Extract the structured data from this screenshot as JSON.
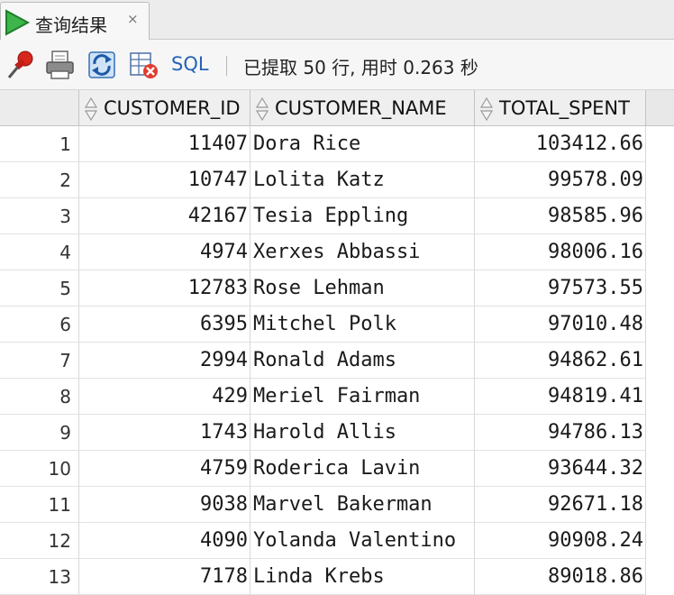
{
  "tab": {
    "label": "查询结果",
    "close_glyph": "×",
    "icon": "run-triangle-icon"
  },
  "toolbar": {
    "buttons": [
      "pin-icon",
      "print-icon",
      "refresh-icon",
      "clear-results-icon"
    ],
    "sql_label": "SQL",
    "status": "已提取 50 行, 用时 0.263 秒"
  },
  "grid": {
    "columns": [
      "CUSTOMER_ID",
      "CUSTOMER_NAME",
      "TOTAL_SPENT"
    ],
    "rows": [
      {
        "n": "1",
        "id": "11407",
        "name": "Dora Rice",
        "total": "103412.66"
      },
      {
        "n": "2",
        "id": "10747",
        "name": "Lolita Katz",
        "total": "99578.09"
      },
      {
        "n": "3",
        "id": "42167",
        "name": "Tesia Eppling",
        "total": "98585.96"
      },
      {
        "n": "4",
        "id": "4974",
        "name": "Xerxes Abbassi",
        "total": "98006.16"
      },
      {
        "n": "5",
        "id": "12783",
        "name": "Rose Lehman",
        "total": "97573.55"
      },
      {
        "n": "6",
        "id": "6395",
        "name": "Mitchel Polk",
        "total": "97010.48"
      },
      {
        "n": "7",
        "id": "2994",
        "name": "Ronald Adams",
        "total": "94862.61"
      },
      {
        "n": "8",
        "id": "429",
        "name": "Meriel Fairman",
        "total": "94819.41"
      },
      {
        "n": "9",
        "id": "1743",
        "name": "Harold Allis",
        "total": "94786.13"
      },
      {
        "n": "10",
        "id": "4759",
        "name": "Roderica Lavin",
        "total": "93644.32"
      },
      {
        "n": "11",
        "id": "9038",
        "name": "Marvel Bakerman",
        "total": "92671.18"
      },
      {
        "n": "12",
        "id": "4090",
        "name": "Yolanda Valentino",
        "total": "90908.24"
      },
      {
        "n": "13",
        "id": "7178",
        "name": "Linda Krebs",
        "total": "89018.86"
      }
    ]
  }
}
